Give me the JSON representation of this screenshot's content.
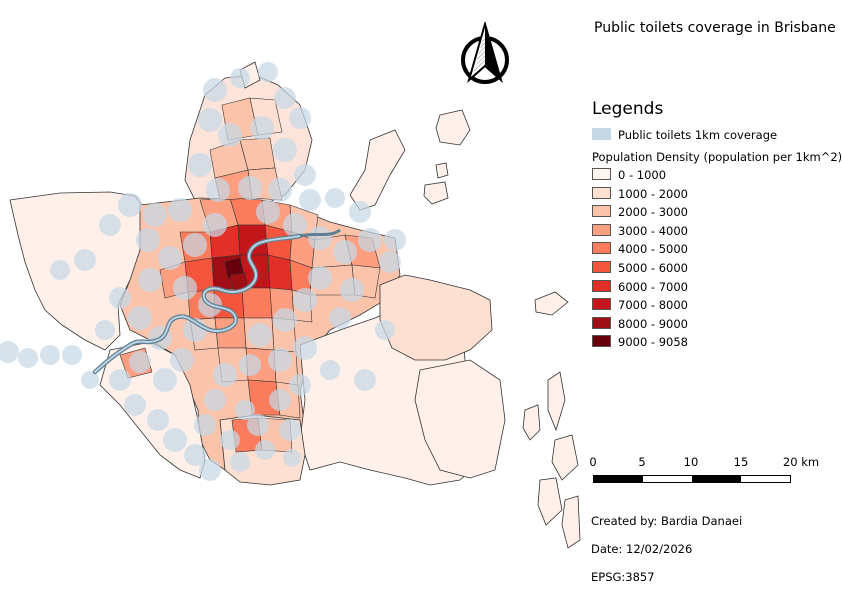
{
  "title": "Public toilets coverage in Brisbane",
  "legend": {
    "heading": "Legends",
    "coverage": {
      "label": "Public toilets 1km coverage",
      "color": "#c6d8e6"
    },
    "density_heading": "Population Density (population per 1km^2)",
    "classes": [
      {
        "label": "0 - 1000",
        "color": "#fff5f0"
      },
      {
        "label": "1000 - 2000",
        "color": "#fee0d2"
      },
      {
        "label": "2000 - 3000",
        "color": "#fcc3ab"
      },
      {
        "label": "3000 - 4000",
        "color": "#fc9f81"
      },
      {
        "label": "4000 - 5000",
        "color": "#fb7c5c"
      },
      {
        "label": "5000 - 6000",
        "color": "#f5553d"
      },
      {
        "label": "6000 - 7000",
        "color": "#e23028"
      },
      {
        "label": "7000 - 8000",
        "color": "#c2161b"
      },
      {
        "label": "8000 - 9000",
        "color": "#9f0e14"
      },
      {
        "label": "9000 - 9058",
        "color": "#67000d"
      }
    ]
  },
  "scale_bar": {
    "ticks": [
      "0",
      "5",
      "10",
      "15",
      "20 km"
    ]
  },
  "credits": {
    "author": "Created by: Bardia Danaei",
    "date": "Date: 12/02/2026",
    "crs": "EPSG:3857"
  },
  "north_arrow": "north-arrow-icon"
}
